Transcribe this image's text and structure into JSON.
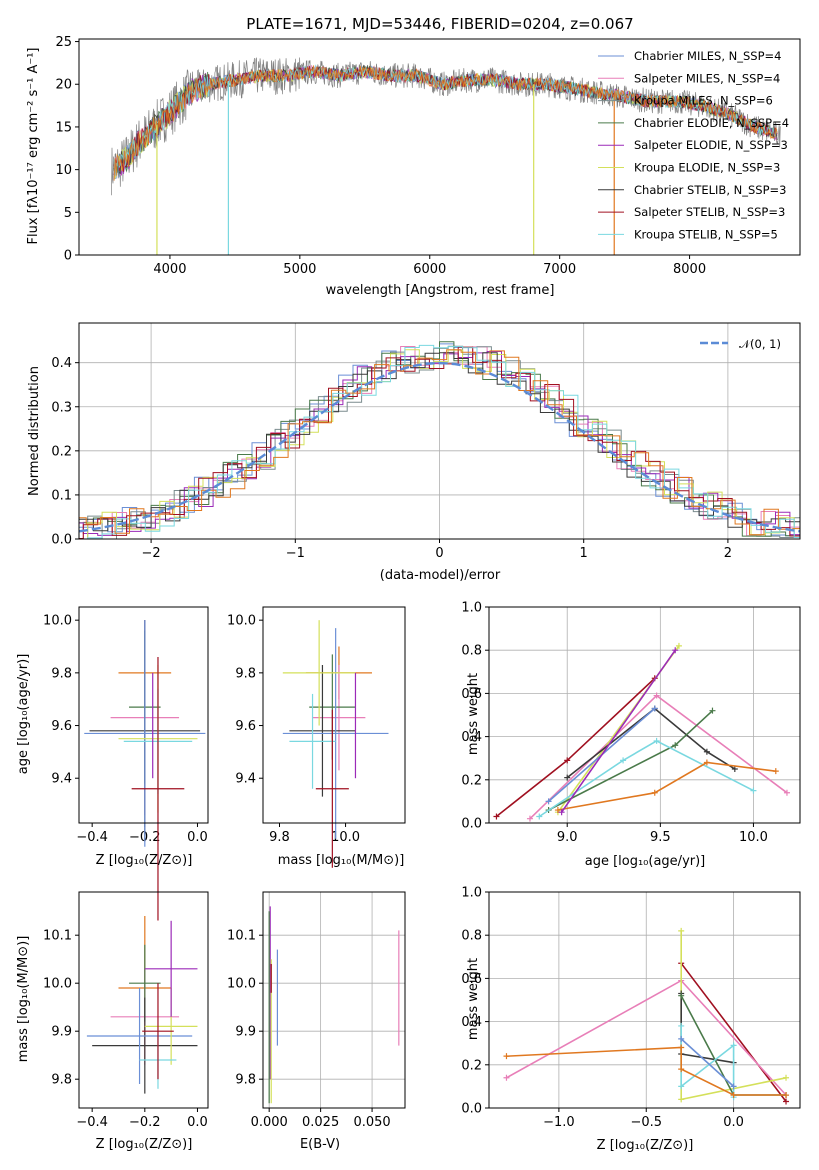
{
  "colors": {
    "series": [
      "#6b8fd6",
      "#e87fb8",
      "#7b8c8e",
      "#4a7a4a",
      "#9b2ab8",
      "#d4e05a",
      "#3a3a3a",
      "#a01020",
      "#7ad8e0"
    ],
    "raw_spectrum": "#808080",
    "gauss": "#5b8bd6",
    "orange": "#e07820"
  },
  "chart_data": [
    {
      "type": "line",
      "title": "PLATE=1671, MJD=53446, FIBERID=0204, z=0.067",
      "xlabel": "wavelength [Angstrom, rest frame]",
      "ylabel": "Flux [fλ10⁻¹⁷ erg cm⁻² s⁻¹ A⁻¹]",
      "xlim": [
        3300,
        8850
      ],
      "ylim": [
        0,
        25.3
      ],
      "xticks": [
        "4000",
        "5000",
        "6000",
        "7000",
        "8000"
      ],
      "yticks": [
        "0",
        "5",
        "10",
        "15",
        "20",
        "25"
      ],
      "legend_position": "top-right",
      "legend": [
        "Chabrier MILES, N_SSP=4",
        "Salpeter MILES, N_SSP=4",
        "Kroupa MILES, N_SSP=6",
        "Chabrier ELODIE, N_SSP=4",
        "Salpeter ELODIE, N_SSP=3",
        "Kroupa ELODIE, N_SSP=3",
        "Chabrier STELIB, N_SSP=3",
        "Salpeter STELIB, N_SSP=3",
        "Kroupa STELIB, N_SSP=5"
      ],
      "continuum": {
        "x": [
          3550,
          3650,
          3750,
          3850,
          3950,
          4050,
          4150,
          4300,
          4500,
          4700,
          4900,
          5100,
          5300,
          5500,
          5700,
          5900,
          6100,
          6300,
          6500,
          6700,
          6900,
          7100,
          7300,
          7500,
          7700,
          7900,
          8100,
          8300,
          8500,
          8700
        ],
        "y": [
          10,
          11,
          13,
          14.5,
          16,
          17.5,
          19,
          20,
          20.5,
          21,
          21,
          21.5,
          21,
          21.5,
          21,
          21,
          20,
          20.5,
          20.5,
          20,
          20,
          19.5,
          19,
          18.5,
          18,
          18,
          17.5,
          16.5,
          15,
          14
        ]
      }
    },
    {
      "type": "line",
      "xlabel": "(data-model)/error",
      "ylabel": "Normed distribution",
      "xlim": [
        -2.5,
        2.5
      ],
      "ylim": [
        0,
        0.49
      ],
      "xticks": [
        "−2",
        "−1",
        "0",
        "1",
        "2"
      ],
      "yticks": [
        "0.0",
        "0.1",
        "0.2",
        "0.3",
        "0.4"
      ],
      "legend": [
        "𝒩(0, 1)"
      ],
      "grid": true
    },
    {
      "type": "scatter",
      "xlabel": "Z [log₁₀(Z/Z⊙)]",
      "ylabel": "age  [log₁₀(age/yr)]",
      "xlim": [
        -0.45,
        0.04
      ],
      "ylim": [
        9.23,
        10.05
      ],
      "xticks": [
        "−0.4",
        "−0.2",
        "0.0"
      ],
      "yticks": [
        "9.4",
        "9.6",
        "9.8",
        "10.0"
      ]
    },
    {
      "type": "scatter",
      "xlabel": "mass [log₁₀(M/M⊙)]",
      "xlim": [
        9.75,
        10.18
      ],
      "ylim": [
        9.23,
        10.05
      ],
      "xticks": [
        "9.8",
        "10.0"
      ],
      "yticks": [
        "9.4",
        "9.6",
        "9.8",
        "10.0"
      ]
    },
    {
      "type": "line",
      "xlabel": "age  [log₁₀(age/yr)]",
      "ylabel": "mass weight",
      "xlim": [
        8.58,
        10.25
      ],
      "ylim": [
        0,
        1
      ],
      "xticks": [
        "9.0",
        "9.5",
        "10.0"
      ],
      "yticks": [
        "0.0",
        "0.2",
        "0.4",
        "0.6",
        "0.8",
        "1.0"
      ],
      "grid": true
    },
    {
      "type": "scatter",
      "xlabel": "Z [log₁₀(Z/Z⊙)]",
      "ylabel": "mass [log₁₀(M/M⊙)]",
      "xlim": [
        -0.45,
        0.04
      ],
      "ylim": [
        9.74,
        10.19
      ],
      "xticks": [
        "−0.4",
        "−0.2",
        "0.0"
      ],
      "yticks": [
        "9.8",
        "9.9",
        "10.0",
        "10.1"
      ]
    },
    {
      "type": "scatter",
      "xlabel": "E(B-V)",
      "xlim": [
        -0.003,
        0.066
      ],
      "ylim": [
        9.74,
        10.19
      ],
      "xticks": [
        "0.000",
        "0.025",
        "0.050"
      ],
      "yticks": [
        "9.8",
        "9.9",
        "10.0",
        "10.1"
      ],
      "grid": true
    },
    {
      "type": "line",
      "xlabel": "Z [log₁₀(Z/Z⊙)]",
      "ylabel": "mass weight",
      "xlim": [
        -1.4,
        0.38
      ],
      "ylim": [
        0,
        1
      ],
      "xticks": [
        "−1.0",
        "−0.5",
        "0.0"
      ],
      "yticks": [
        "0.0",
        "0.2",
        "0.4",
        "0.6",
        "0.8",
        "1.0"
      ],
      "grid": true
    }
  ]
}
